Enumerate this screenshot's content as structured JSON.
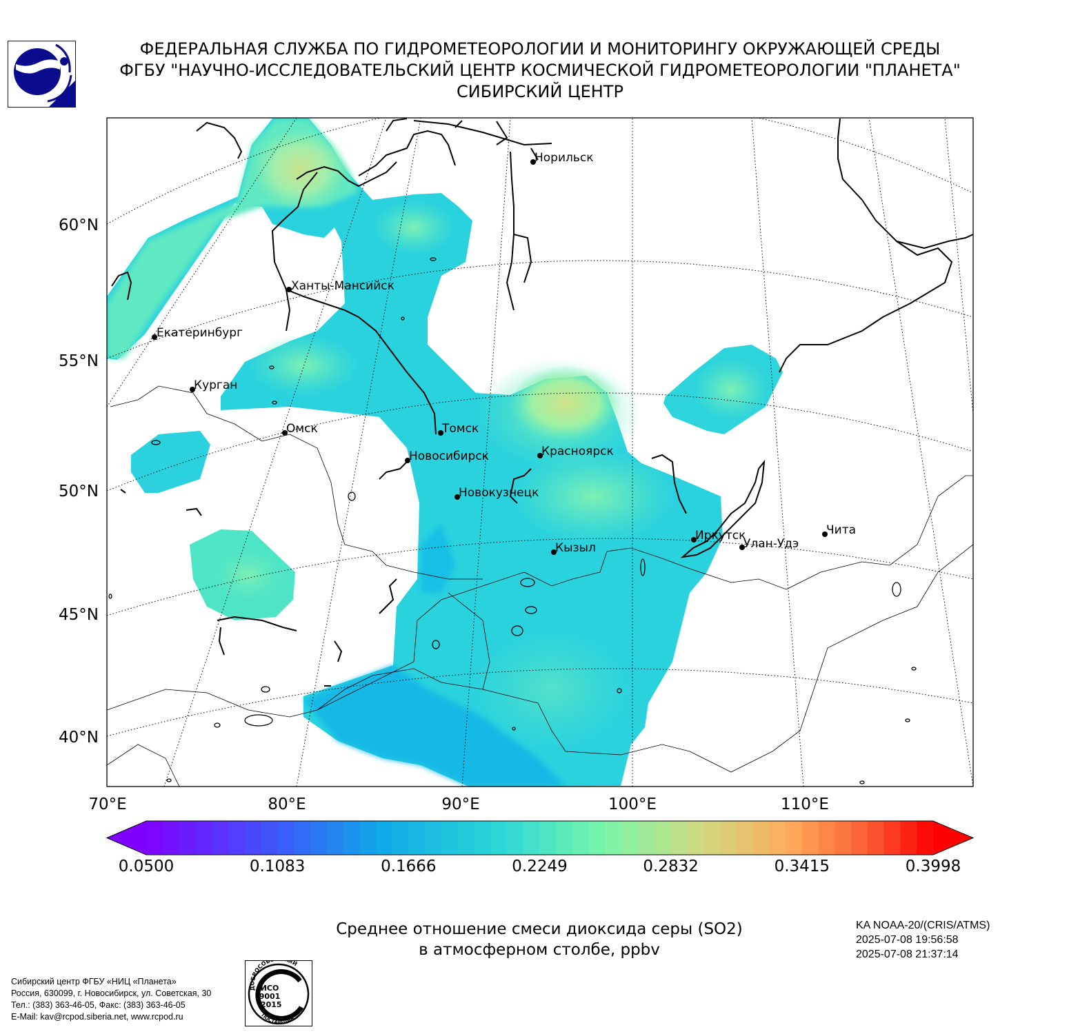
{
  "header": {
    "line1": "ФЕДЕРАЛЬНАЯ СЛУЖБА ПО ГИДРОМЕТЕОРОЛОГИИ И МОНИТОРИНГУ ОКРУЖАЮЩЕЙ СРЕДЫ",
    "line2": "ФГБУ \"НАУЧНО-ИССЛЕДОВАТЕЛЬСКИЙ ЦЕНТР КОСМИЧЕСКОЙ ГИДРОМЕТЕОРОЛОГИИ \"ПЛАНЕТА\"",
    "line3": "СИБИРСКИЙ ЦЕНТР"
  },
  "map": {
    "lat_labels": [
      "60°N",
      "55°N",
      "50°N",
      "45°N",
      "40°N"
    ],
    "lon_labels": [
      "70°E",
      "80°E",
      "90°E",
      "100°E",
      "110°E"
    ],
    "cities": [
      {
        "name": "Норильск"
      },
      {
        "name": "Ханты-Мансийск"
      },
      {
        "name": "Екатеринбург"
      },
      {
        "name": "Курган"
      },
      {
        "name": "Омск"
      },
      {
        "name": "Томск"
      },
      {
        "name": "Новосибирск"
      },
      {
        "name": "Красноярск"
      },
      {
        "name": "Новокузнецк"
      },
      {
        "name": "Иркутск"
      },
      {
        "name": "Улан-Удэ"
      },
      {
        "name": "Чита"
      },
      {
        "name": "Кызыл"
      }
    ]
  },
  "colorbar": {
    "min": 0.05,
    "max": 0.3998,
    "extend": "both",
    "tick_labels": [
      "0.0500",
      "0.1083",
      "0.1666",
      "0.2249",
      "0.2832",
      "0.3415",
      "0.3998"
    ]
  },
  "caption": {
    "line1": "Среднее отношение смеси диоксида серы (SO2)",
    "line2": "в атмосферном столбе, ppbv"
  },
  "satellite": {
    "name": "KA NOAA-20/(CRIS/ATMS)",
    "time_start": "2025-07-08 19:56:58",
    "time_end": "2025-07-08 21:37:14"
  },
  "footer": {
    "line1": "Сибирский центр ФГБУ «НИЦ «Планета»",
    "line2": "Россия, 630099, г. Новосибирск, ул. Советская, 30",
    "line3": "Тел.: (383) 363-46-05, Факс: (383) 363-46-05",
    "line4": "E-Mail: kav@rcpod.siberia.net, www.rcpod.ru"
  },
  "iso_badge": {
    "top": "ДОБРОСОВЕСТНЫЙ",
    "code1": "ИСО",
    "code2": "9001",
    "code3": "-2015",
    "bottom": "ПОСТАВЩИК"
  }
}
